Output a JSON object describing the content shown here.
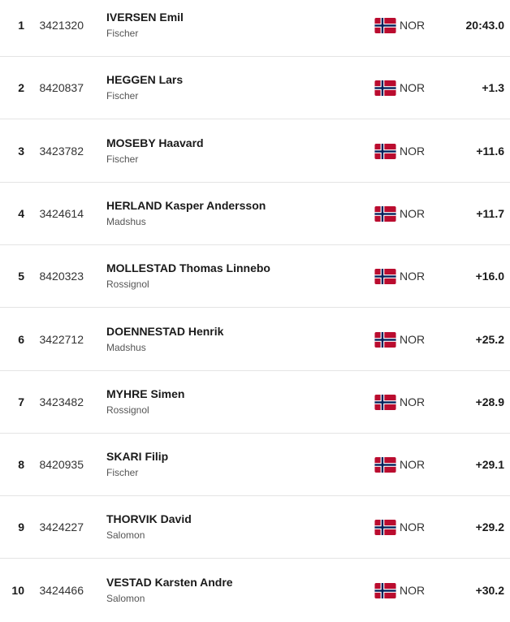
{
  "results": {
    "rows": [
      {
        "rank": "1",
        "bib": "3421320",
        "name": "IVERSEN Emil",
        "brand": "Fischer",
        "nation": "NOR",
        "time": "20:43.0"
      },
      {
        "rank": "2",
        "bib": "8420837",
        "name": "HEGGEN Lars",
        "brand": "Fischer",
        "nation": "NOR",
        "time": "+1.3"
      },
      {
        "rank": "3",
        "bib": "3423782",
        "name": "MOSEBY Haavard",
        "brand": "Fischer",
        "nation": "NOR",
        "time": "+11.6"
      },
      {
        "rank": "4",
        "bib": "3424614",
        "name": "HERLAND Kasper Andersson",
        "brand": "Madshus",
        "nation": "NOR",
        "time": "+11.7"
      },
      {
        "rank": "5",
        "bib": "8420323",
        "name": "MOLLESTAD Thomas Linnebo",
        "brand": "Rossignol",
        "nation": "NOR",
        "time": "+16.0"
      },
      {
        "rank": "6",
        "bib": "3422712",
        "name": "DOENNESTAD Henrik",
        "brand": "Madshus",
        "nation": "NOR",
        "time": "+25.2"
      },
      {
        "rank": "7",
        "bib": "3423482",
        "name": "MYHRE Simen",
        "brand": "Rossignol",
        "nation": "NOR",
        "time": "+28.9"
      },
      {
        "rank": "8",
        "bib": "8420935",
        "name": "SKARI Filip",
        "brand": "Fischer",
        "nation": "NOR",
        "time": "+29.1"
      },
      {
        "rank": "9",
        "bib": "3424227",
        "name": "THORVIK David",
        "brand": "Salomon",
        "nation": "NOR",
        "time": "+29.2"
      },
      {
        "rank": "10",
        "bib": "3424466",
        "name": "VESTAD Karsten Andre",
        "brand": "Salomon",
        "nation": "NOR",
        "time": "+30.2"
      }
    ]
  }
}
